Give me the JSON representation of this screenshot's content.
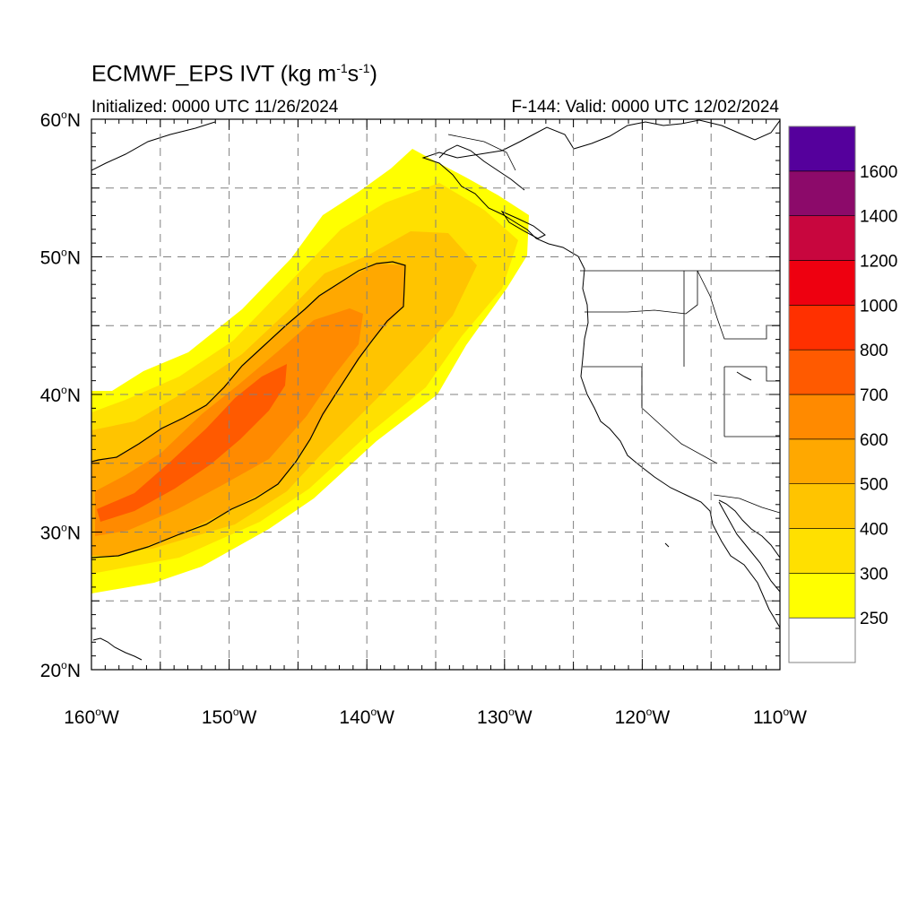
{
  "title": {
    "main": "ECMWF_EPS IVT (kg m",
    "exp1": "-1",
    "mid": "s",
    "exp2": "-1",
    "close": ")"
  },
  "subtitle": {
    "initialized": "Initialized: 0000 UTC 11/26/2024",
    "valid": "F-144: Valid: 0000 UTC 12/02/2024"
  },
  "axes": {
    "lat_labels": [
      "20",
      "30",
      "40",
      "50",
      "60"
    ],
    "lat_suffix": "N",
    "lon_labels": [
      "160",
      "150",
      "140",
      "130",
      "120",
      "110"
    ],
    "lon_suffix": "W",
    "degree": "o"
  },
  "colorbar": {
    "labels": [
      "250",
      "300",
      "400",
      "500",
      "600",
      "700",
      "800",
      "1000",
      "1200",
      "1400",
      "1600"
    ],
    "colors": [
      "#ffffff",
      "#ffff00",
      "#ffe000",
      "#ffc400",
      "#ffa800",
      "#ff8a00",
      "#ff5a00",
      "#ff3000",
      "#ee0010",
      "#c8063e",
      "#8c0a6a",
      "#55009c"
    ]
  },
  "map": {
    "lon_min": -160,
    "lon_max": -110,
    "lat_min": 20,
    "lat_max": 60,
    "contour_level": "500"
  }
}
